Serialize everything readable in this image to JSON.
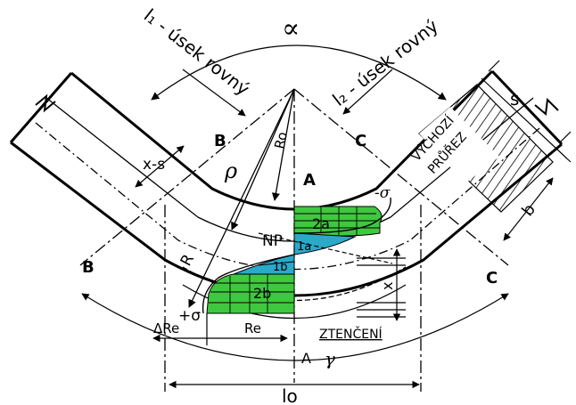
{
  "labels": {
    "alpha": "∝",
    "l1": "l₁ - úsek rovný",
    "l2": "l₂ - úsek rovný",
    "point_A_top": "A",
    "point_A_bottom": "A",
    "point_B_upper": "B",
    "point_B_lower": "B",
    "point_C_upper": "C",
    "point_C_lower": "C",
    "x_s": "x-s",
    "rho": "ρ",
    "Ro": "Ro",
    "R": "R",
    "NP": "NP",
    "zone_2a": "2a",
    "zone_1a": "1a",
    "zone_1b": "1b",
    "zone_2b": "2b",
    "sigma_minus": "-σ",
    "sigma_plus": "+σ",
    "delta_Re": "ΔRe",
    "Re": "Re",
    "thinning": "ZTENČENÍ",
    "gamma": "γ",
    "lo": "lo",
    "s": "s",
    "b": "b",
    "x": "x",
    "vychozi": "VÝCHOZÍ",
    "prurez": "PRŮŘEZ"
  },
  "colors": {
    "compression_zone": "#3fc83f",
    "tension_zone": "#2aa9c9",
    "line": "#000000"
  }
}
